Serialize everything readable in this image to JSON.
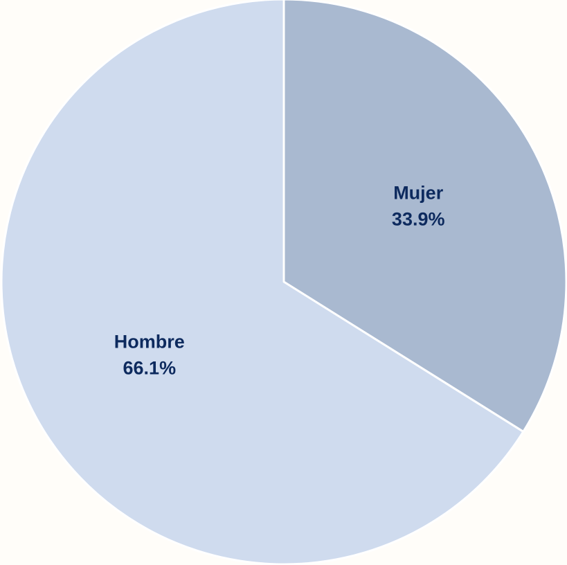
{
  "chart_data": {
    "type": "pie",
    "categories": [
      "Mujer",
      "Hombre"
    ],
    "values": [
      33.9,
      66.1
    ],
    "value_labels": [
      "33.9%",
      "66.1%"
    ],
    "colors": [
      "#a9b9d0",
      "#cfdbee"
    ]
  }
}
